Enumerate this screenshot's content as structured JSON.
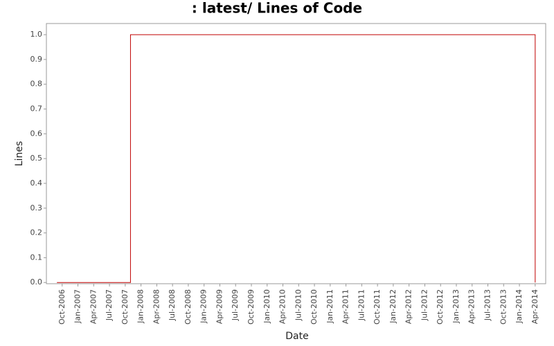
{
  "chart_data": {
    "type": "step",
    "title": ": latest/ Lines of Code",
    "x_label": "Date",
    "y_label": "Lines",
    "x": [
      "2006-09",
      "2007-11",
      "2014-04"
    ],
    "values": [
      0,
      1,
      0
    ],
    "color": "#c00000",
    "xlim": [
      "2006-07",
      "2014-06"
    ],
    "xticks": [
      {
        "value": "2006-10",
        "label": "Oct-2006"
      },
      {
        "value": "2007-01",
        "label": "Jan-2007"
      },
      {
        "value": "2007-04",
        "label": "Apr-2007"
      },
      {
        "value": "2007-07",
        "label": "Jul-2007"
      },
      {
        "value": "2007-10",
        "label": "Oct-2007"
      },
      {
        "value": "2008-01",
        "label": "Jan-2008"
      },
      {
        "value": "2008-04",
        "label": "Apr-2008"
      },
      {
        "value": "2008-07",
        "label": "Jul-2008"
      },
      {
        "value": "2008-10",
        "label": "Oct-2008"
      },
      {
        "value": "2009-01",
        "label": "Jan-2009"
      },
      {
        "value": "2009-04",
        "label": "Apr-2009"
      },
      {
        "value": "2009-07",
        "label": "Jul-2009"
      },
      {
        "value": "2009-10",
        "label": "Oct-2009"
      },
      {
        "value": "2010-01",
        "label": "Jan-2010"
      },
      {
        "value": "2010-04",
        "label": "Apr-2010"
      },
      {
        "value": "2010-07",
        "label": "Jul-2010"
      },
      {
        "value": "2010-10",
        "label": "Oct-2010"
      },
      {
        "value": "2011-01",
        "label": "Jan-2011"
      },
      {
        "value": "2011-04",
        "label": "Apr-2011"
      },
      {
        "value": "2011-07",
        "label": "Jul-2011"
      },
      {
        "value": "2011-10",
        "label": "Oct-2011"
      },
      {
        "value": "2012-01",
        "label": "Jan-2012"
      },
      {
        "value": "2012-04",
        "label": "Apr-2012"
      },
      {
        "value": "2012-07",
        "label": "Jul-2012"
      },
      {
        "value": "2012-10",
        "label": "Oct-2012"
      },
      {
        "value": "2013-01",
        "label": "Jan-2013"
      },
      {
        "value": "2013-04",
        "label": "Apr-2013"
      },
      {
        "value": "2013-07",
        "label": "Jul-2013"
      },
      {
        "value": "2013-10",
        "label": "Oct-2013"
      },
      {
        "value": "2014-01",
        "label": "Jan-2014"
      },
      {
        "value": "2014-04",
        "label": "Apr-2014"
      }
    ],
    "ylim": [
      -0.005,
      1.045
    ],
    "yticks": [
      {
        "value": 0,
        "label": "0.0"
      },
      0.1,
      0.2,
      0.3,
      0.4,
      0.5,
      0.6,
      0.7,
      0.8,
      0.9,
      {
        "value": 1,
        "label": "1.0"
      }
    ]
  }
}
